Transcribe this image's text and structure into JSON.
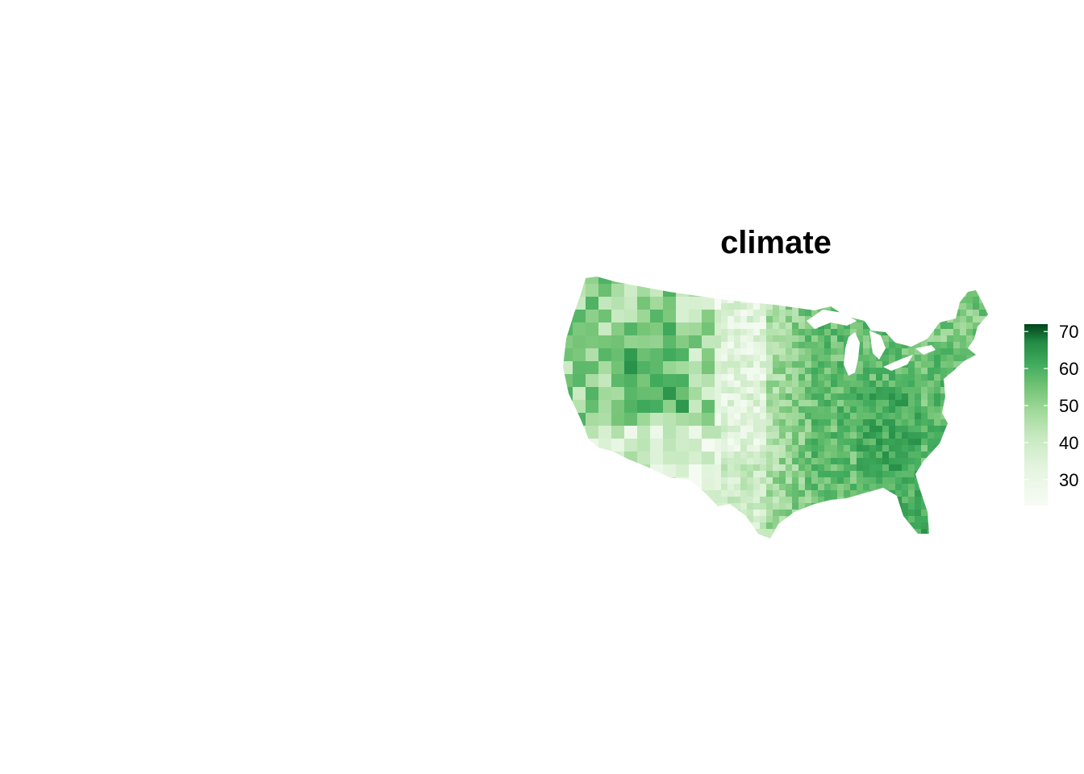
{
  "map": {
    "title": "climate",
    "region": "contiguous-us-counties",
    "palette": {
      "low": "#f7fcf5",
      "c1": "#e5f5e0",
      "c2": "#c7e9c0",
      "c3": "#a1d99b",
      "c4": "#74c476",
      "c5": "#41ab5d",
      "c6": "#238b45",
      "high": "#00441b"
    }
  },
  "legend": {
    "min": 23,
    "max": 72,
    "ticks": [
      {
        "value": 70,
        "label": "70"
      },
      {
        "value": 60,
        "label": "60"
      },
      {
        "value": 50,
        "label": "50"
      },
      {
        "value": 40,
        "label": "40"
      },
      {
        "value": 30,
        "label": "30"
      }
    ]
  }
}
